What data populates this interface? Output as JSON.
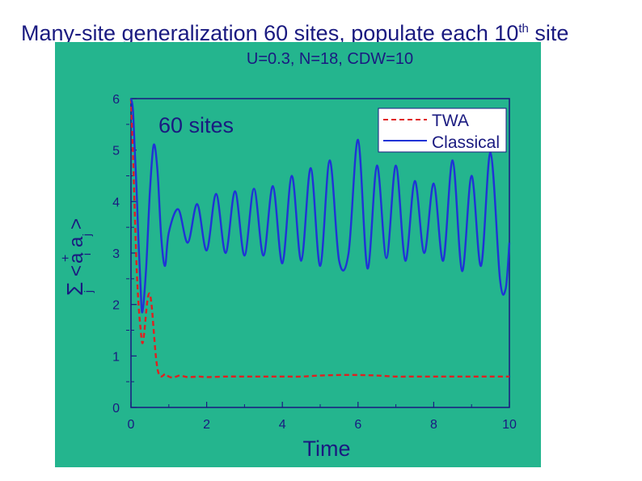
{
  "slide": {
    "title_main": "Many-site generalization 60 sites, populate each 10",
    "title_sup": "th",
    "title_tail": " site"
  },
  "chart_data": {
    "type": "line",
    "title": "U=0.3, N=18, CDW=10",
    "annotation": "60 sites",
    "xlabel": "Time",
    "ylabel": "Σ<a†ᵢaⱼ>",
    "ylabel_parts": {
      "sum": "Σ",
      "open": "<",
      "a1": "a",
      "dagger": "+",
      "i": "i",
      "a2": "a",
      "j": "j",
      "close": ">",
      "sum_sub": "j"
    },
    "xlim": [
      0,
      10
    ],
    "ylim": [
      0,
      6
    ],
    "x_ticks": [
      0,
      2,
      4,
      6,
      8,
      10
    ],
    "y_ticks": [
      0,
      1,
      2,
      3,
      4,
      5,
      6
    ],
    "grid": false,
    "legend_position": "top-right",
    "colors": {
      "panel": "#24b58e",
      "axis": "#1a1a80",
      "twa": "#e02020",
      "classical": "#1f33d6"
    },
    "series": [
      {
        "name": "TWA",
        "style": "dashed",
        "x": [
          0.0,
          0.05,
          0.1,
          0.15,
          0.2,
          0.25,
          0.3,
          0.35,
          0.4,
          0.45,
          0.5,
          0.55,
          0.6,
          0.65,
          0.7,
          0.75,
          0.8,
          0.85,
          0.9,
          0.95,
          1.0,
          1.1,
          1.2,
          1.3,
          1.5,
          1.8,
          2.0,
          2.5,
          3.0,
          3.5,
          4.0,
          4.5,
          5.0,
          5.5,
          6.0,
          6.5,
          7.0,
          7.5,
          8.0,
          8.5,
          9.0,
          9.5,
          10.0
        ],
        "y": [
          6.0,
          5.0,
          3.8,
          2.7,
          2.0,
          1.55,
          1.25,
          1.45,
          1.85,
          2.15,
          2.2,
          1.95,
          1.5,
          1.05,
          0.75,
          0.63,
          0.6,
          0.62,
          0.65,
          0.63,
          0.6,
          0.58,
          0.6,
          0.62,
          0.59,
          0.6,
          0.59,
          0.6,
          0.6,
          0.6,
          0.6,
          0.6,
          0.62,
          0.63,
          0.63,
          0.62,
          0.6,
          0.6,
          0.6,
          0.6,
          0.6,
          0.6,
          0.6
        ]
      },
      {
        "name": "Classical",
        "style": "solid",
        "x": [
          0.0,
          0.05,
          0.1,
          0.15,
          0.2,
          0.25,
          0.3,
          0.4,
          0.5,
          0.6,
          0.7,
          0.8,
          0.9,
          1.0,
          1.25,
          1.5,
          1.75,
          2.0,
          2.25,
          2.5,
          2.75,
          3.0,
          3.25,
          3.5,
          3.75,
          4.0,
          4.25,
          4.5,
          4.75,
          5.0,
          5.25,
          5.5,
          5.75,
          6.0,
          6.25,
          6.5,
          6.75,
          7.0,
          7.25,
          7.5,
          7.75,
          8.0,
          8.25,
          8.5,
          8.75,
          9.0,
          9.25,
          9.5,
          9.75,
          9.9,
          10.0
        ],
        "y": [
          6.0,
          5.8,
          5.0,
          4.2,
          3.2,
          2.4,
          1.85,
          2.7,
          4.2,
          5.1,
          4.6,
          3.3,
          2.75,
          3.4,
          3.85,
          3.2,
          3.95,
          3.05,
          4.15,
          3.0,
          4.2,
          2.95,
          4.25,
          2.95,
          4.3,
          2.8,
          4.5,
          2.85,
          4.65,
          2.75,
          4.8,
          2.85,
          3.0,
          5.2,
          2.7,
          4.7,
          2.9,
          4.7,
          2.85,
          4.4,
          3.0,
          4.35,
          2.85,
          4.8,
          2.65,
          4.5,
          2.75,
          4.95,
          2.5,
          2.3,
          3.2
        ]
      }
    ]
  }
}
